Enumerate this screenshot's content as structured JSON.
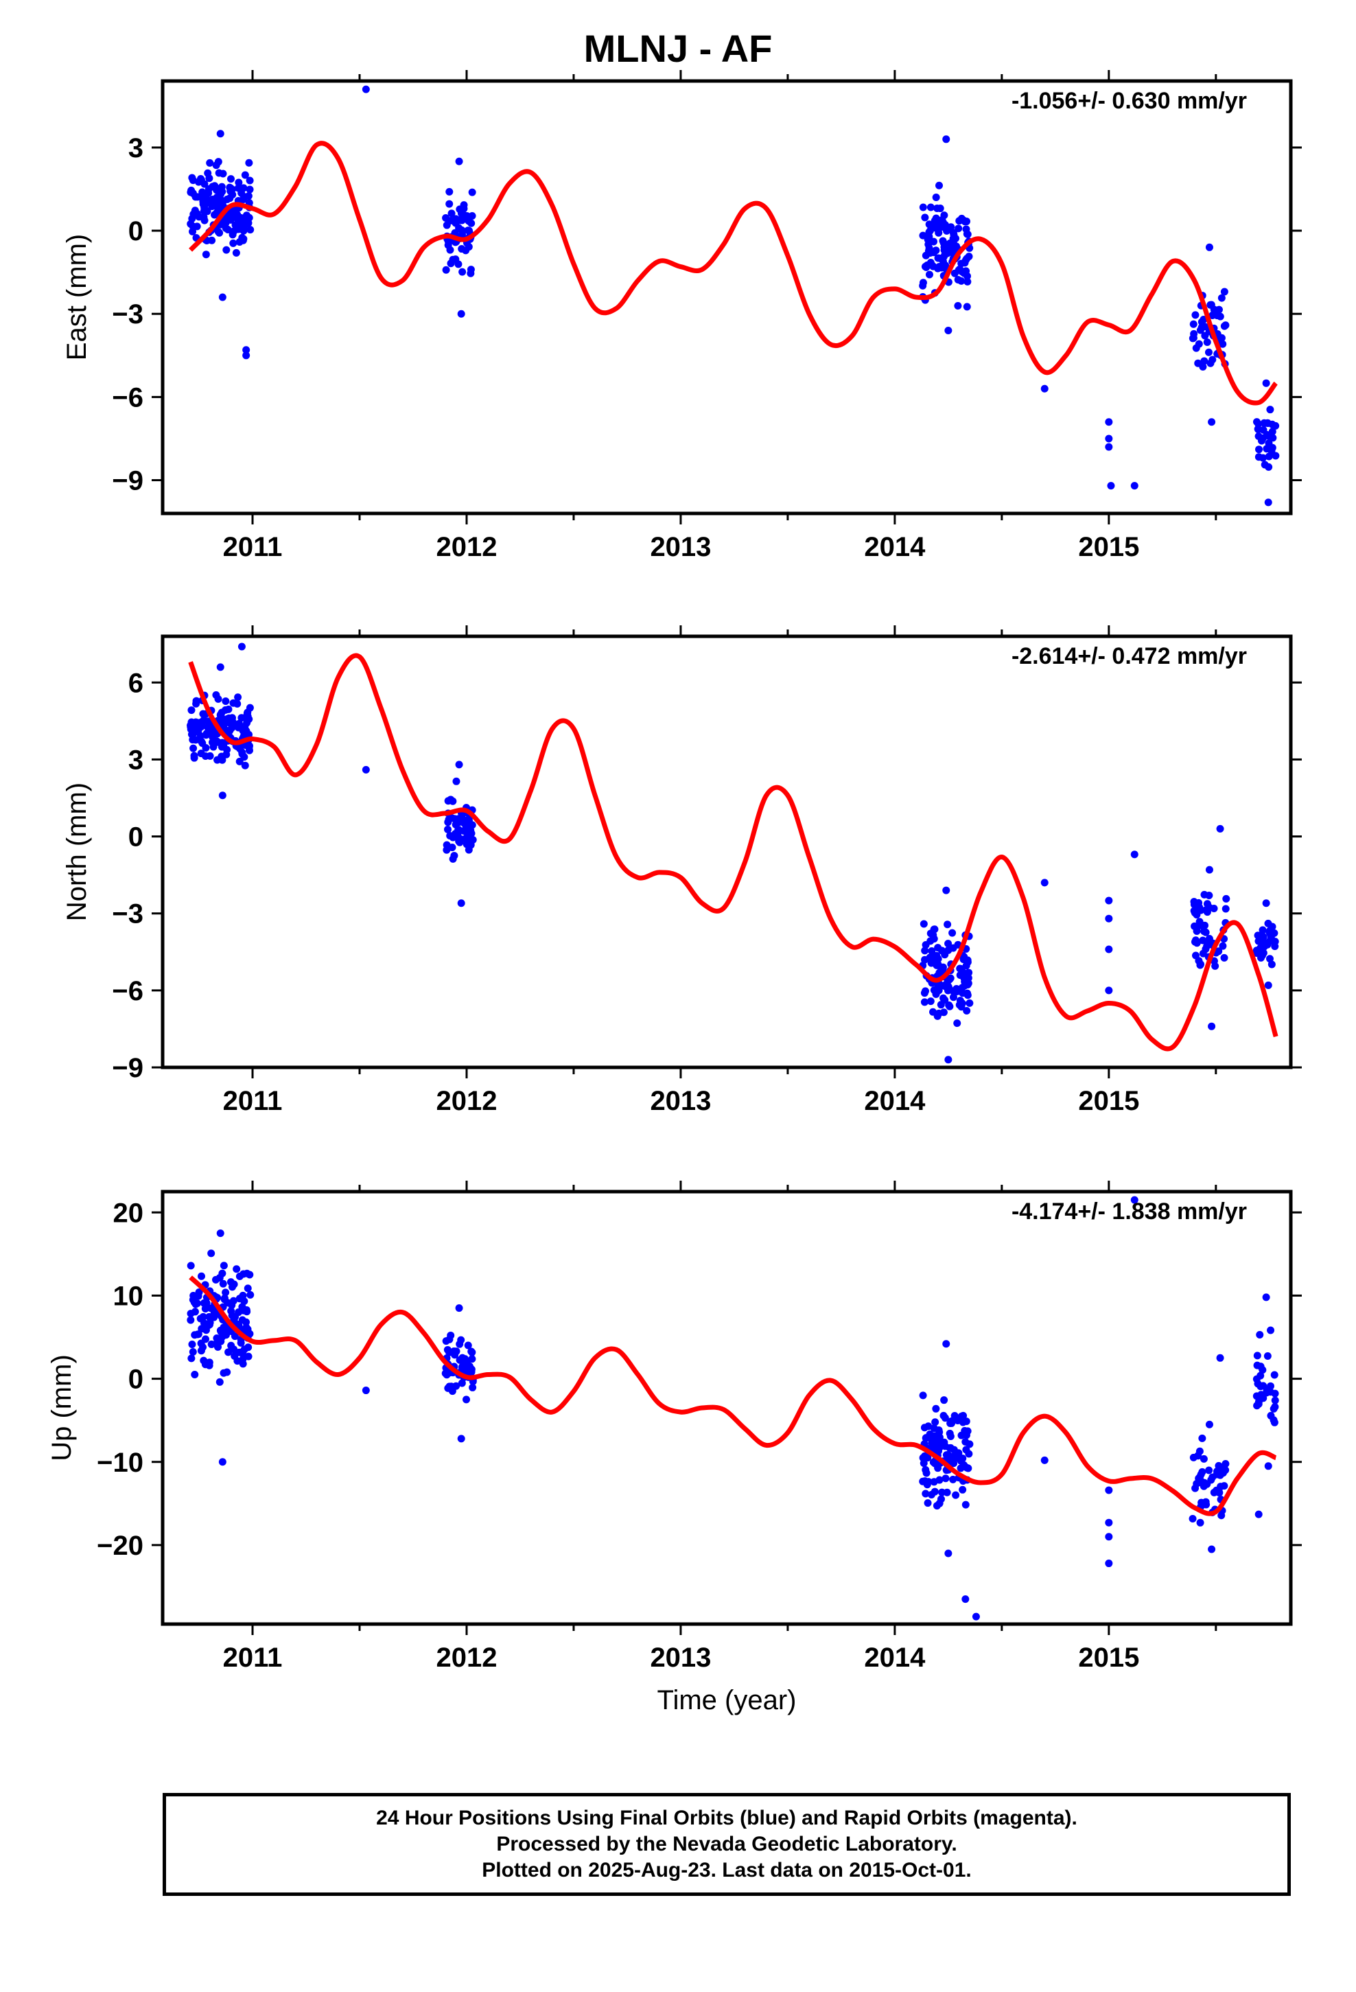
{
  "title": "MLNJ - AF",
  "xlabel": "Time (year)",
  "footer": {
    "line1": "24 Hour Positions Using Final Orbits (blue) and Rapid Orbits (magenta).",
    "line2": "Processed by the Nevada Geodetic Laboratory.",
    "line3": "Plotted on 2025-Aug-23. Last data on 2015-Oct-01."
  },
  "colors": {
    "points": "#0000ff",
    "fit": "#ff0000",
    "frame": "#000000"
  },
  "chart_data": [
    {
      "type": "scatter",
      "name": "east",
      "ylabel": "East (mm)",
      "rate_text": "-1.056+/- 0.630 mm/yr",
      "xlim": [
        2010.58,
        2015.85
      ],
      "ylim": [
        -10.2,
        5.4
      ],
      "xticks": [
        2011,
        2012,
        2013,
        2014,
        2015
      ],
      "yticks": [
        -9,
        -6,
        -3,
        0,
        3
      ],
      "grid": false,
      "clusters": [
        {
          "x": [
            2010.71,
            2010.99
          ],
          "ymin": -2.4,
          "ymax": 3.5,
          "yc": 0.8,
          "n": 150
        },
        {
          "x": [
            2011.9,
            2012.03
          ],
          "ymin": -3.0,
          "ymax": 2.5,
          "yc": 0.0,
          "n": 60
        },
        {
          "x": [
            2014.13,
            2014.35
          ],
          "ymin": -3.6,
          "ymax": 3.3,
          "yc": -0.6,
          "n": 120
        },
        {
          "x": [
            2015.39,
            2015.55
          ],
          "ymin": -6.9,
          "ymax": -0.6,
          "yc": -3.6,
          "n": 50
        },
        {
          "x": [
            2015.69,
            2015.78
          ],
          "ymin": -9.8,
          "ymax": -5.5,
          "yc": -7.4,
          "n": 30
        }
      ],
      "outliers": [
        [
          2011.53,
          5.1
        ],
        [
          2010.97,
          -4.3
        ],
        [
          2010.97,
          -4.5
        ],
        [
          2014.7,
          -5.7
        ],
        [
          2015.0,
          -6.9
        ],
        [
          2015.0,
          -7.5
        ],
        [
          2015.0,
          -7.8
        ],
        [
          2015.01,
          -9.2
        ],
        [
          2015.12,
          -9.2
        ]
      ],
      "fit": {
        "x": [
          2010.71,
          2010.8,
          2010.9,
          2011.0,
          2011.1,
          2011.2,
          2011.3,
          2011.4,
          2011.5,
          2011.6,
          2011.7,
          2011.8,
          2011.9,
          2012.0,
          2012.1,
          2012.2,
          2012.3,
          2012.4,
          2012.5,
          2012.6,
          2012.7,
          2012.8,
          2012.9,
          2013.0,
          2013.1,
          2013.2,
          2013.3,
          2013.4,
          2013.5,
          2013.6,
          2013.7,
          2013.8,
          2013.9,
          2014.0,
          2014.1,
          2014.2,
          2014.3,
          2014.4,
          2014.5,
          2014.6,
          2014.7,
          2014.8,
          2014.9,
          2015.0,
          2015.1,
          2015.2,
          2015.3,
          2015.4,
          2015.5,
          2015.6,
          2015.7,
          2015.78
        ],
        "y": [
          -0.7,
          0.0,
          0.9,
          0.8,
          0.6,
          1.6,
          3.1,
          2.6,
          0.4,
          -1.7,
          -1.8,
          -0.6,
          -0.2,
          -0.3,
          0.4,
          1.7,
          2.1,
          0.9,
          -1.2,
          -2.8,
          -2.8,
          -1.8,
          -1.1,
          -1.3,
          -1.4,
          -0.5,
          0.8,
          0.8,
          -0.9,
          -3.0,
          -4.1,
          -3.8,
          -2.4,
          -2.1,
          -2.4,
          -2.2,
          -0.8,
          -0.3,
          -1.2,
          -3.8,
          -5.1,
          -4.5,
          -3.3,
          -3.4,
          -3.6,
          -2.3,
          -1.1,
          -1.8,
          -4.0,
          -5.8,
          -6.2,
          -5.5
        ]
      }
    },
    {
      "type": "scatter",
      "name": "north",
      "ylabel": "North (mm)",
      "rate_text": "-2.614+/- 0.472 mm/yr",
      "xlim": [
        2010.58,
        2015.85
      ],
      "ylim": [
        -9.0,
        7.8
      ],
      "xticks": [
        2011,
        2012,
        2013,
        2014,
        2015
      ],
      "yticks": [
        -9,
        -6,
        -3,
        0,
        3,
        6
      ],
      "grid": false,
      "clusters": [
        {
          "x": [
            2010.71,
            2010.99
          ],
          "ymin": 1.6,
          "ymax": 6.6,
          "yc": 4.0,
          "n": 150
        },
        {
          "x": [
            2011.9,
            2012.03
          ],
          "ymin": -2.6,
          "ymax": 2.8,
          "yc": 0.5,
          "n": 60
        },
        {
          "x": [
            2014.13,
            2014.35
          ],
          "ymin": -8.7,
          "ymax": -2.1,
          "yc": -5.4,
          "n": 120
        },
        {
          "x": [
            2015.39,
            2015.55
          ],
          "ymin": -7.4,
          "ymax": -1.3,
          "yc": -3.6,
          "n": 50
        },
        {
          "x": [
            2015.69,
            2015.78
          ],
          "ymin": -5.8,
          "ymax": -2.6,
          "yc": -4.2,
          "n": 30
        }
      ],
      "outliers": [
        [
          2010.95,
          7.4
        ],
        [
          2011.53,
          2.6
        ],
        [
          2014.7,
          -1.8
        ],
        [
          2015.0,
          -2.5
        ],
        [
          2015.0,
          -3.2
        ],
        [
          2015.0,
          -4.4
        ],
        [
          2015.0,
          -6.0
        ],
        [
          2015.12,
          -0.7
        ],
        [
          2015.52,
          0.3
        ]
      ],
      "fit": {
        "x": [
          2010.71,
          2010.8,
          2010.9,
          2011.0,
          2011.1,
          2011.2,
          2011.3,
          2011.4,
          2011.5,
          2011.6,
          2011.7,
          2011.8,
          2011.9,
          2012.0,
          2012.1,
          2012.2,
          2012.3,
          2012.4,
          2012.5,
          2012.6,
          2012.7,
          2012.8,
          2012.9,
          2013.0,
          2013.1,
          2013.2,
          2013.3,
          2013.4,
          2013.5,
          2013.6,
          2013.7,
          2013.8,
          2013.9,
          2014.0,
          2014.1,
          2014.2,
          2014.3,
          2014.4,
          2014.5,
          2014.6,
          2014.7,
          2014.8,
          2014.9,
          2015.0,
          2015.1,
          2015.2,
          2015.3,
          2015.4,
          2015.5,
          2015.6,
          2015.7,
          2015.78
        ],
        "y": [
          6.8,
          4.8,
          3.7,
          3.8,
          3.5,
          2.4,
          3.6,
          6.2,
          7.0,
          5.0,
          2.6,
          1.0,
          0.9,
          1.0,
          0.2,
          -0.1,
          1.8,
          4.2,
          4.2,
          1.6,
          -0.8,
          -1.6,
          -1.4,
          -1.6,
          -2.6,
          -2.8,
          -1.0,
          1.6,
          1.6,
          -0.8,
          -3.2,
          -4.3,
          -4.0,
          -4.3,
          -5.0,
          -5.6,
          -4.6,
          -2.2,
          -0.8,
          -2.4,
          -5.5,
          -7.0,
          -6.8,
          -6.5,
          -6.8,
          -7.9,
          -8.2,
          -6.6,
          -4.2,
          -3.4,
          -5.4,
          -7.8
        ]
      }
    },
    {
      "type": "scatter",
      "name": "up",
      "ylabel": "Up (mm)",
      "rate_text": "-4.174+/- 1.838 mm/yr",
      "xlim": [
        2010.58,
        2015.85
      ],
      "ylim": [
        -29.5,
        22.5
      ],
      "xticks": [
        2011,
        2012,
        2013,
        2014,
        2015
      ],
      "yticks": [
        -20,
        -10,
        0,
        10,
        20
      ],
      "grid": false,
      "clusters": [
        {
          "x": [
            2010.71,
            2010.99
          ],
          "ymin": -10.0,
          "ymax": 17.5,
          "yc": 7.5,
          "n": 150
        },
        {
          "x": [
            2011.9,
            2012.03
          ],
          "ymin": -7.2,
          "ymax": 8.5,
          "yc": 1.5,
          "n": 60
        },
        {
          "x": [
            2014.13,
            2014.35
          ],
          "ymin": -21.0,
          "ymax": 4.2,
          "yc": -9.0,
          "n": 120
        },
        {
          "x": [
            2015.39,
            2015.55
          ],
          "ymin": -20.5,
          "ymax": -5.5,
          "yc": -12.5,
          "n": 50
        },
        {
          "x": [
            2015.69,
            2015.78
          ],
          "ymin": -10.5,
          "ymax": 9.8,
          "yc": -1.0,
          "n": 30
        }
      ],
      "outliers": [
        [
          2011.53,
          -1.4
        ],
        [
          2014.33,
          -26.5
        ],
        [
          2014.38,
          -28.6
        ],
        [
          2014.7,
          -9.8
        ],
        [
          2015.0,
          -13.4
        ],
        [
          2015.0,
          -17.3
        ],
        [
          2015.0,
          -19.0
        ],
        [
          2015.0,
          -22.2
        ],
        [
          2015.12,
          21.5
        ],
        [
          2015.52,
          2.5
        ],
        [
          2015.7,
          -16.3
        ]
      ],
      "fit": {
        "x": [
          2010.71,
          2010.8,
          2010.9,
          2011.0,
          2011.1,
          2011.2,
          2011.3,
          2011.4,
          2011.5,
          2011.6,
          2011.7,
          2011.8,
          2011.9,
          2012.0,
          2012.1,
          2012.2,
          2012.3,
          2012.4,
          2012.5,
          2012.6,
          2012.7,
          2012.8,
          2012.9,
          2013.0,
          2013.1,
          2013.2,
          2013.3,
          2013.4,
          2013.5,
          2013.6,
          2013.7,
          2013.8,
          2013.9,
          2014.0,
          2014.1,
          2014.2,
          2014.3,
          2014.4,
          2014.5,
          2014.6,
          2014.7,
          2014.8,
          2014.9,
          2015.0,
          2015.1,
          2015.2,
          2015.3,
          2015.4,
          2015.5,
          2015.6,
          2015.7,
          2015.78
        ],
        "y": [
          12.2,
          10.0,
          6.5,
          4.5,
          4.6,
          4.6,
          2.0,
          0.5,
          2.5,
          6.5,
          8.0,
          5.5,
          2.0,
          0.2,
          0.5,
          0.2,
          -2.5,
          -4.0,
          -1.5,
          2.5,
          3.5,
          0.5,
          -3.0,
          -4.0,
          -3.5,
          -3.7,
          -6.0,
          -8.0,
          -6.5,
          -2.0,
          -0.2,
          -2.5,
          -6.0,
          -7.8,
          -8.0,
          -9.5,
          -11.5,
          -12.5,
          -11.5,
          -6.5,
          -4.5,
          -6.5,
          -10.5,
          -12.3,
          -12.0,
          -12.0,
          -13.5,
          -15.5,
          -16.0,
          -12.0,
          -9.0,
          -9.5
        ]
      }
    }
  ]
}
